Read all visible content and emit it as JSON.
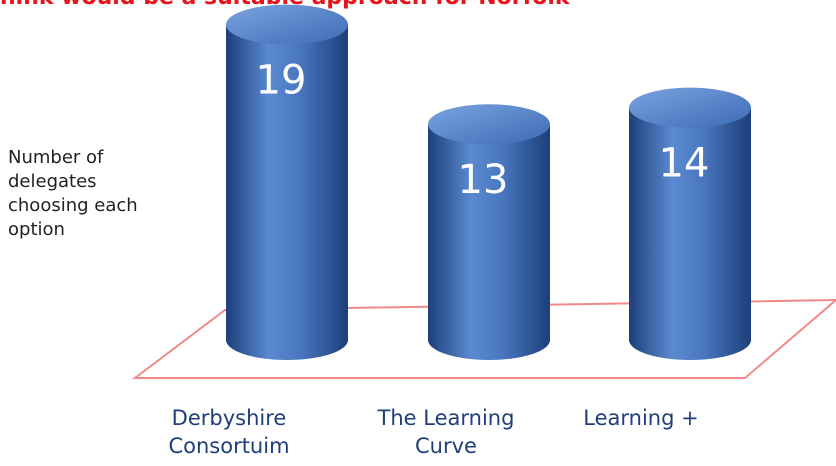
{
  "chart_data": {
    "type": "bar",
    "title": "hink would be a suitable approach for Norfolk",
    "y_label": "Number of delegates choosing each option",
    "categories": [
      "Derbyshire\nConsortuim",
      "The Learning\nCurve",
      "Learning +"
    ],
    "values": [
      19,
      13,
      14
    ],
    "color": "#3f6fb8"
  }
}
